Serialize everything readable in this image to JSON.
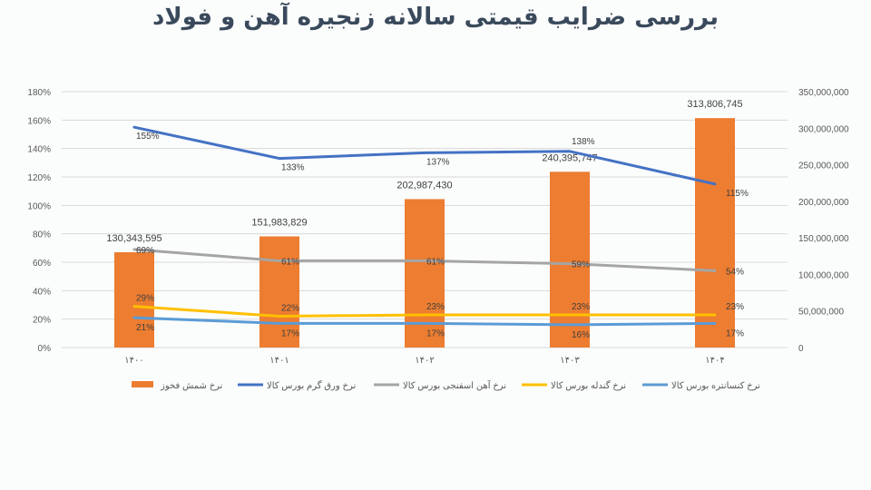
{
  "chart_data": {
    "type": "bar+line",
    "title": "بررسی ضرایب قیمتی سالانه زنجیره آهن و فولاد",
    "categories": [
      "۱۴۰۰",
      "۱۴۰۱",
      "۱۴۰۲",
      "۱۴۰۳",
      "۱۴۰۴"
    ],
    "left_axis": {
      "range": [
        0,
        180
      ],
      "ticks": [
        "0%",
        "20%",
        "40%",
        "60%",
        "80%",
        "100%",
        "120%",
        "140%",
        "160%",
        "180%"
      ]
    },
    "right_axis": {
      "range": [
        0,
        350000000
      ],
      "ticks": [
        "0",
        "50,000,000",
        "100,000,000",
        "150,000,000",
        "200,000,000",
        "250,000,000",
        "300,000,000",
        "350,000,000"
      ]
    },
    "grid": true,
    "legend_position": "bottom",
    "bar_series": {
      "name": "نرخ شمش فخوز",
      "color": "#ed7d31",
      "values": [
        130343595,
        151983829,
        202987430,
        240395747,
        313806745
      ],
      "labels": [
        "130,343,595",
        "151,983,829",
        "202,987,430",
        "240,395,747",
        "313,806,745"
      ]
    },
    "line_series": [
      {
        "name": "نرخ ورق گرم بورس کالا",
        "color": "#4472c4",
        "values": [
          155,
          133,
          137,
          138,
          115
        ]
      },
      {
        "name": "نرخ آهن اسفنجی بورس کالا",
        "color": "#a5a5a5",
        "values": [
          69,
          61,
          61,
          59,
          54
        ]
      },
      {
        "name": "نرخ گندله بورس کالا",
        "color": "#ffc000",
        "values": [
          29,
          22,
          23,
          23,
          23
        ]
      },
      {
        "name": "نرخ کنسانتره بورس کالا",
        "color": "#5b9bd5",
        "values": [
          21,
          17,
          17,
          16,
          17
        ]
      }
    ]
  }
}
